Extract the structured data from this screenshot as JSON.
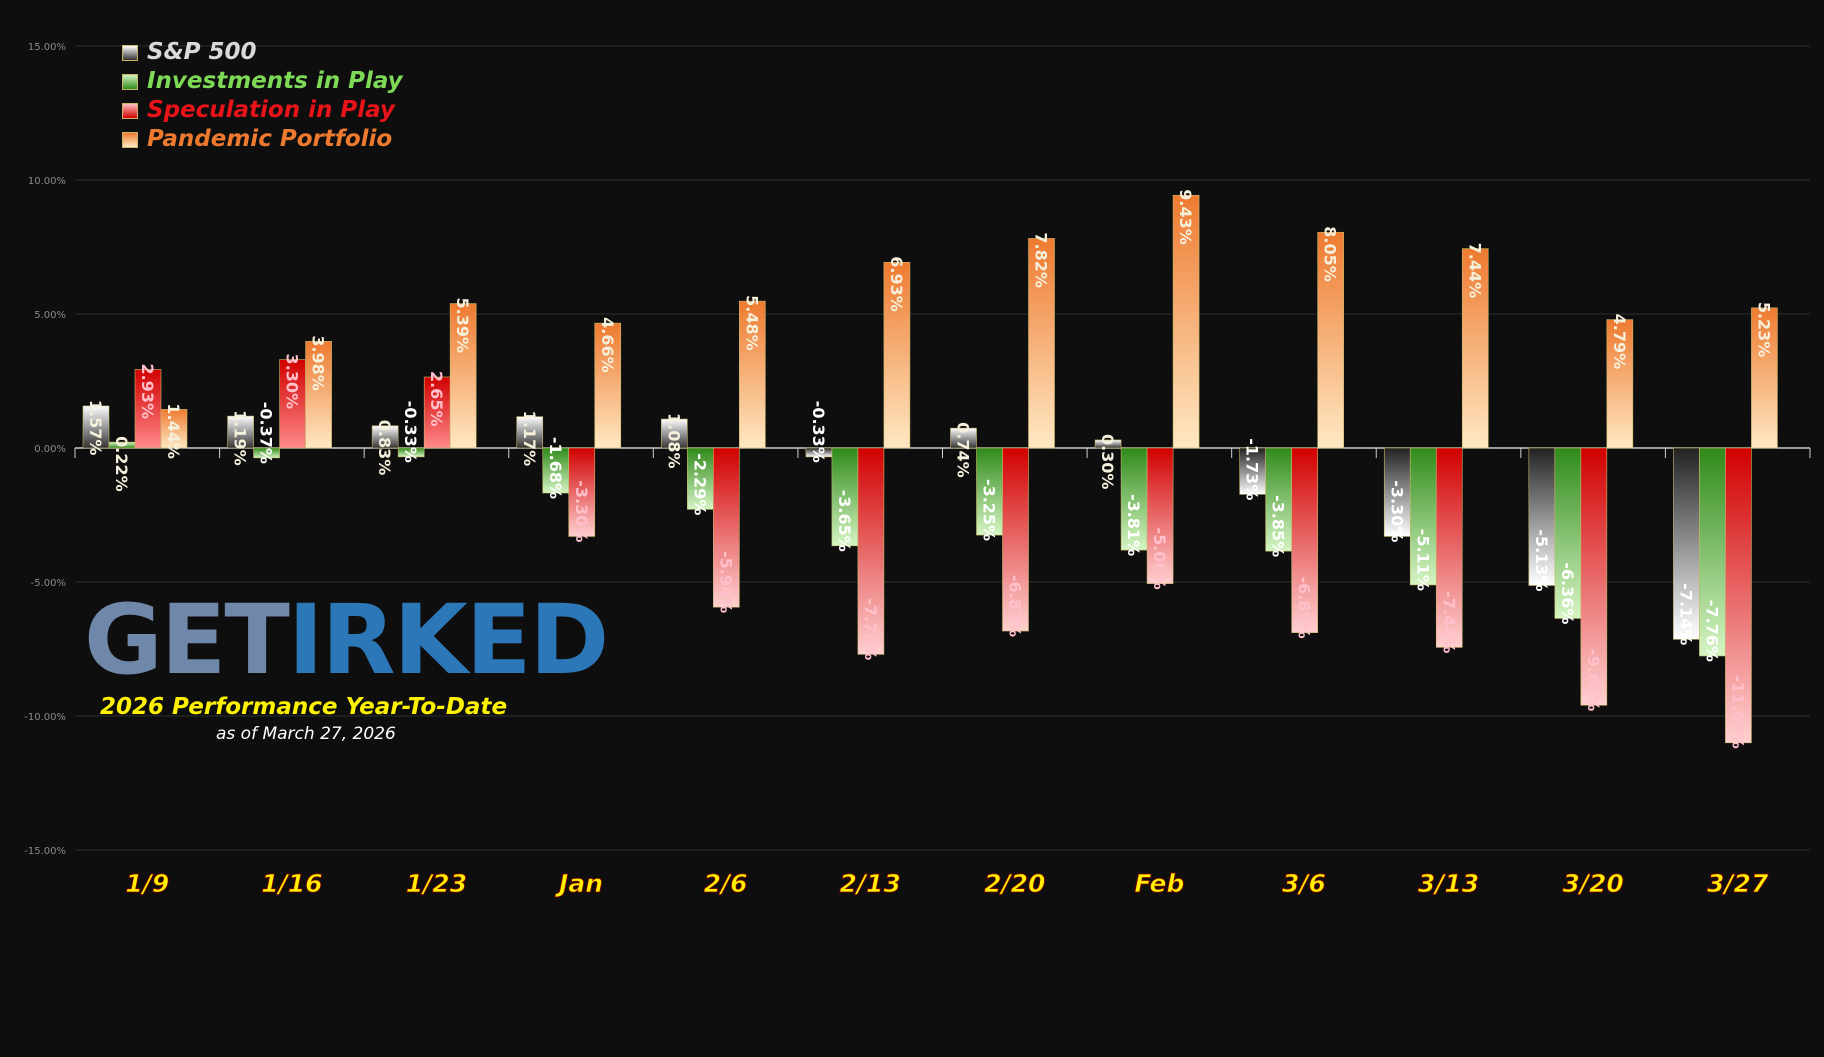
{
  "chart_data": {
    "type": "bar",
    "title": "2026 Performance Year-To-Date",
    "subtitle": "as of March 27, 2026",
    "xlabel": "",
    "ylabel": "",
    "ylim": [
      -15,
      15
    ],
    "yticks": [
      "15.00%",
      "10.00%",
      "5.00%",
      "0.00%",
      "-5.00%",
      "-10.00%",
      "-15.00%"
    ],
    "grid": true,
    "legend_position": "top-left",
    "categories": [
      "1/9",
      "1/16",
      "1/23",
      "Jan",
      "2/6",
      "2/13",
      "2/20",
      "Feb",
      "3/6",
      "3/13",
      "3/20",
      "3/27"
    ],
    "series": [
      {
        "name": "S&P 500",
        "color": "#9a9a9a",
        "values": [
          1.57,
          1.19,
          0.83,
          1.17,
          1.08,
          -0.33,
          0.74,
          0.3,
          -1.73,
          -3.3,
          -5.13,
          -7.14
        ],
        "labels": [
          "1.57%",
          "1.19%",
          "0.83%",
          "1.17%",
          "1.08%",
          "-0.33%",
          "0.74%",
          "0.30%",
          "-1.73%",
          "-3.30%",
          "-5.13%",
          "-7.14%"
        ]
      },
      {
        "name": "Investments in Play",
        "color": "#5cbf3a",
        "values": [
          0.22,
          -0.37,
          -0.33,
          -1.68,
          -2.29,
          -3.65,
          -3.25,
          -3.81,
          -3.85,
          -5.11,
          -6.36,
          -7.76
        ],
        "labels": [
          "0.22%",
          "-0.37%",
          "-0.33%",
          "-1.68%",
          "-2.29%",
          "-3.65%",
          "-3.25%",
          "-3.81%",
          "-3.85%",
          "-5.11%",
          "-6.36%",
          "-7.76%"
        ]
      },
      {
        "name": "Speculation in Play",
        "color": "#e8141a",
        "values": [
          2.93,
          3.3,
          2.65,
          -3.3,
          -5.94,
          -7.7,
          -6.83,
          -5.06,
          -6.89,
          -7.44,
          -9.6,
          -11.0
        ],
        "labels": [
          "2.93%",
          "3.30%",
          "2.65%",
          "-3.30%",
          "-5.94%",
          "-7.70%",
          "-6.83%",
          "-5.06%",
          "-6.89%",
          "-7.44%",
          "-9.60%",
          "-11.00%"
        ]
      },
      {
        "name": "Pandemic Portfolio",
        "color": "#ee7a30",
        "values": [
          1.44,
          3.98,
          5.39,
          4.66,
          5.48,
          6.93,
          7.82,
          9.43,
          8.05,
          7.44,
          4.79,
          5.23
        ],
        "labels": [
          "1.44%",
          "3.98%",
          "5.39%",
          "4.66%",
          "5.48%",
          "6.93%",
          "7.82%",
          "9.43%",
          "8.05%",
          "7.44%",
          "4.79%",
          "5.23%"
        ]
      }
    ]
  },
  "legend": {
    "items": [
      {
        "label": "S&P 500",
        "color": "#d9d9d9"
      },
      {
        "label": "Investments in Play",
        "color": "#7ed957"
      },
      {
        "label": "Speculation in Play",
        "color": "#e8141a"
      },
      {
        "label": "Pandemic Portfolio",
        "color": "#ee7a30"
      }
    ]
  },
  "logo": {
    "get": "GET",
    "irked": "IRKED",
    "title": "2026 Performance Year-To-Date",
    "subtitle": "as of March 27, 2026"
  },
  "colors": {
    "background": "#0e0e0e",
    "grid": "#2e2e2e",
    "category_label": "#fff200",
    "positive_label": "#f5f0dc",
    "negative_label_light": "#ffffff",
    "negative_label_pink": "#ffc0cb"
  }
}
